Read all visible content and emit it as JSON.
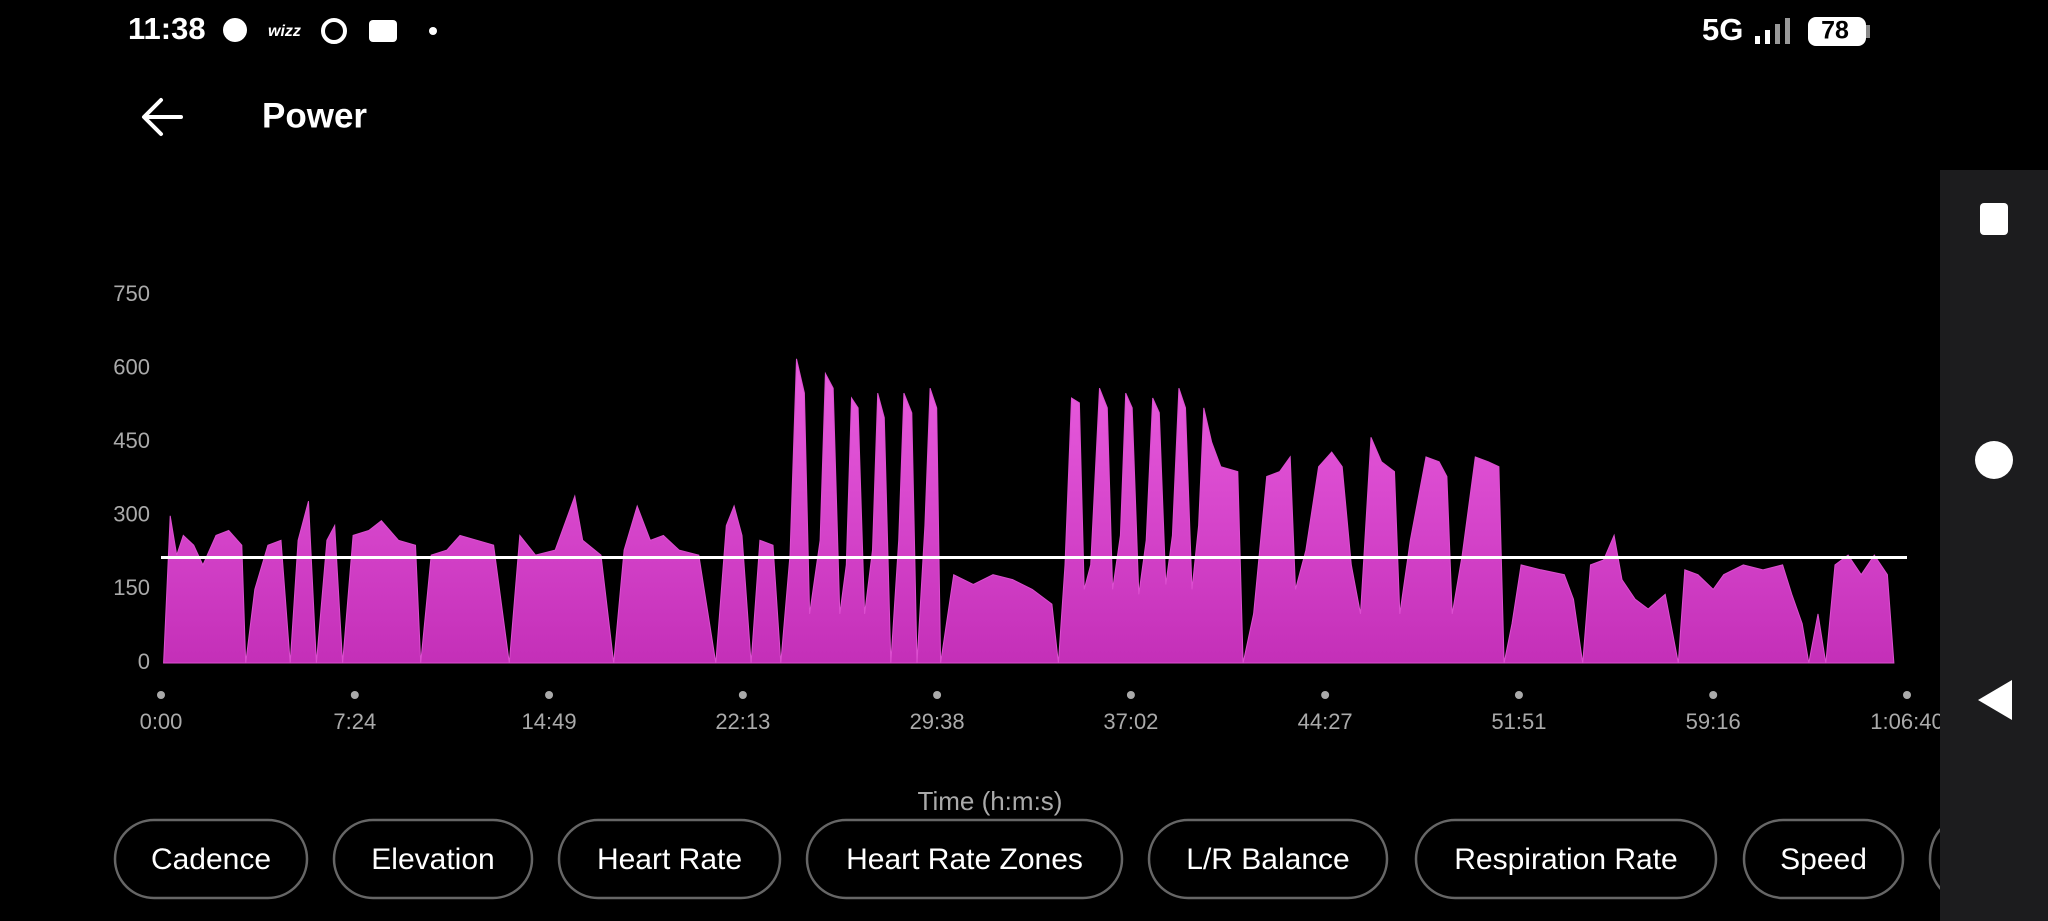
{
  "status_bar": {
    "time": "11:38",
    "network": "5G",
    "battery": "78"
  },
  "header": {
    "title": "Power"
  },
  "chart_data": {
    "type": "area",
    "x_label": "Time (h:m:s)",
    "color": "#dc4fd0",
    "reference_line": 215,
    "reference_color": "#ffffff",
    "xlim": [
      0,
      4000
    ],
    "ylim": [
      0,
      750
    ],
    "xticks": [
      {
        "value": 0,
        "label": "0:00"
      },
      {
        "value": 444,
        "label": "7:24"
      },
      {
        "value": 889,
        "label": "14:49"
      },
      {
        "value": 1333,
        "label": "22:13"
      },
      {
        "value": 1778,
        "label": "29:38"
      },
      {
        "value": 2222,
        "label": "37:02"
      },
      {
        "value": 2667,
        "label": "44:27"
      },
      {
        "value": 3111,
        "label": "51:51"
      },
      {
        "value": 3556,
        "label": "59:16"
      },
      {
        "value": 4000,
        "label": "1:06:40"
      }
    ],
    "yticks": [
      0,
      150,
      300,
      450,
      600,
      750
    ],
    "x": [
      6,
      21,
      36,
      51,
      75,
      96,
      126,
      155,
      185,
      194,
      215,
      245,
      275,
      296,
      314,
      338,
      356,
      380,
      398,
      416,
      440,
      476,
      505,
      544,
      583,
      595,
      619,
      655,
      685,
      724,
      762,
      798,
      822,
      858,
      903,
      948,
      966,
      1008,
      1037,
      1061,
      1091,
      1121,
      1151,
      1187,
      1232,
      1271,
      1295,
      1313,
      1331,
      1352,
      1372,
      1402,
      1420,
      1441,
      1456,
      1474,
      1486,
      1510,
      1522,
      1540,
      1555,
      1570,
      1582,
      1597,
      1612,
      1630,
      1642,
      1657,
      1672,
      1690,
      1702,
      1720,
      1732,
      1750,
      1762,
      1777,
      1786,
      1816,
      1861,
      1906,
      1951,
      1996,
      2041,
      2056,
      2071,
      2086,
      2104,
      2115,
      2130,
      2150,
      2168,
      2180,
      2198,
      2210,
      2225,
      2240,
      2257,
      2272,
      2287,
      2302,
      2317,
      2332,
      2347,
      2362,
      2377,
      2389,
      2407,
      2428,
      2467,
      2479,
      2503,
      2533,
      2563,
      2587,
      2599,
      2623,
      2652,
      2682,
      2706,
      2727,
      2748,
      2772,
      2796,
      2826,
      2838,
      2862,
      2898,
      2928,
      2946,
      2958,
      2981,
      3011,
      3041,
      3065,
      3077,
      3095,
      3116,
      3161,
      3215,
      3236,
      3257,
      3275,
      3305,
      3329,
      3347,
      3377,
      3407,
      3446,
      3476,
      3491,
      3521,
      3556,
      3580,
      3625,
      3670,
      3715,
      3736,
      3760,
      3775,
      3796,
      3814,
      3835,
      3865,
      3895,
      3925,
      3955,
      3970
    ],
    "values": [
      0,
      300,
      220,
      260,
      240,
      200,
      260,
      270,
      240,
      0,
      150,
      240,
      250,
      0,
      250,
      330,
      0,
      250,
      280,
      0,
      260,
      270,
      290,
      250,
      240,
      0,
      220,
      230,
      260,
      250,
      240,
      0,
      260,
      220,
      230,
      340,
      250,
      220,
      0,
      230,
      320,
      250,
      260,
      230,
      220,
      0,
      280,
      320,
      260,
      0,
      250,
      240,
      0,
      220,
      620,
      550,
      100,
      250,
      590,
      560,
      100,
      200,
      540,
      520,
      100,
      230,
      550,
      500,
      0,
      250,
      550,
      510,
      0,
      280,
      560,
      520,
      0,
      180,
      160,
      180,
      170,
      150,
      120,
      0,
      200,
      540,
      530,
      150,
      200,
      560,
      520,
      150,
      260,
      550,
      520,
      140,
      250,
      540,
      510,
      160,
      260,
      560,
      520,
      150,
      280,
      520,
      450,
      400,
      390,
      0,
      100,
      380,
      390,
      420,
      150,
      230,
      400,
      430,
      400,
      200,
      100,
      460,
      410,
      390,
      100,
      250,
      420,
      410,
      380,
      100,
      220,
      420,
      410,
      400,
      0,
      80,
      200,
      190,
      180,
      130,
      0,
      200,
      210,
      260,
      170,
      130,
      110,
      140,
      0,
      190,
      180,
      150,
      180,
      200,
      190,
      200,
      140,
      80,
      0,
      100,
      0,
      200,
      220,
      180,
      220,
      180,
      0
    ]
  },
  "chips": [
    "Cadence",
    "Elevation",
    "Heart Rate",
    "Heart Rate Zones",
    "L/R Balance",
    "Respiration Rate",
    "Speed"
  ]
}
